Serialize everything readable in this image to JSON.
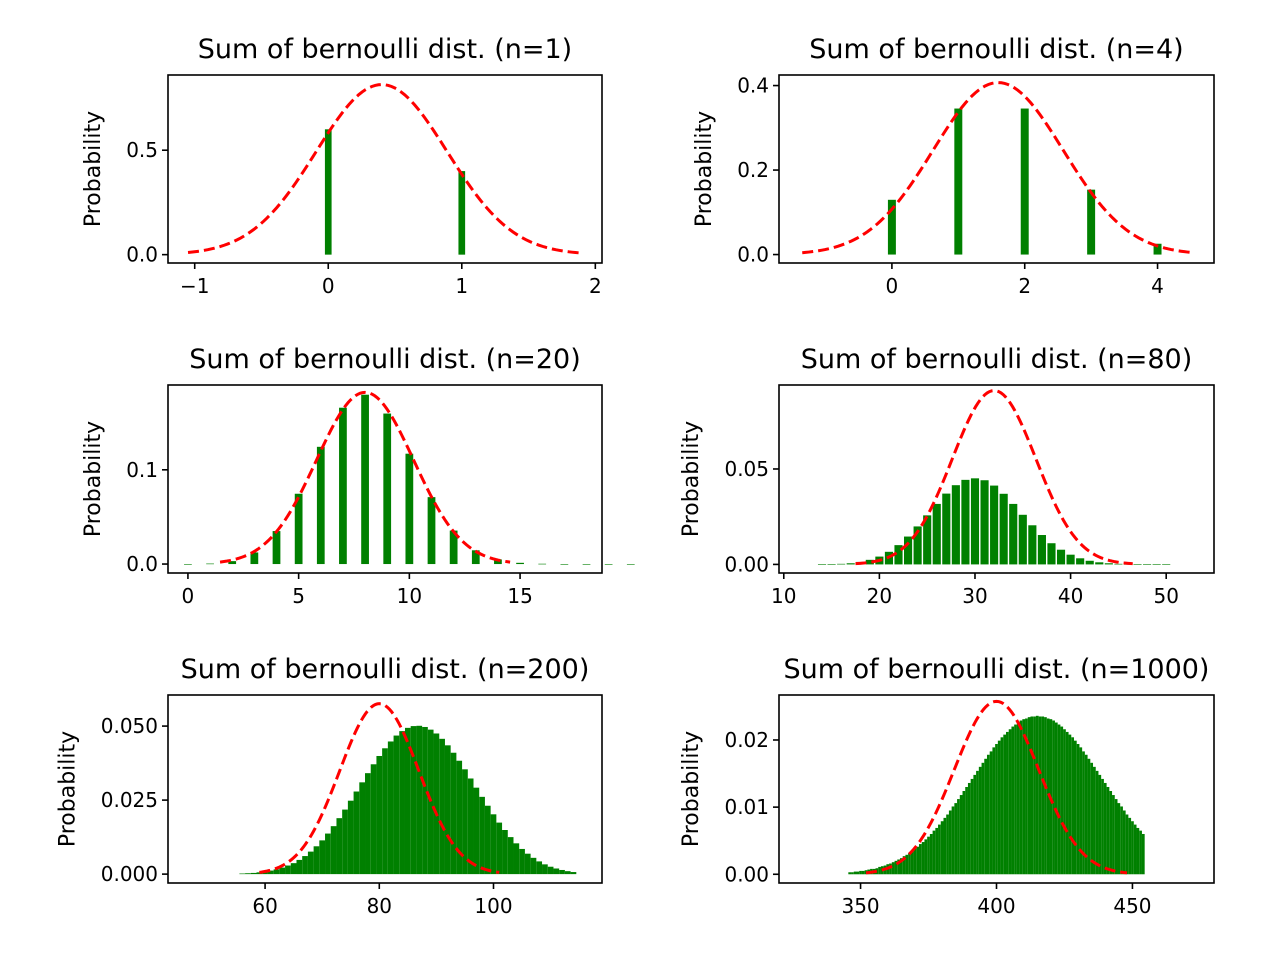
{
  "chart_data": [
    {
      "type": "bar",
      "title": "Sum of bernoulli dist. (n=1)",
      "ylabel": "Probability",
      "n": 1,
      "p": 0.4,
      "xlim": [
        -1.2,
        2.05
      ],
      "ylim": [
        -0.04,
        0.86
      ],
      "xticks": [
        -1,
        0,
        1,
        2
      ],
      "xtick_labels": [
        "−1",
        "0",
        "1",
        "2"
      ],
      "yticks": [
        0,
        0.5
      ],
      "ytick_labels": [
        "0.0",
        "0.5"
      ],
      "bar_width": 0.05,
      "x": [
        0,
        1
      ],
      "values": [
        0.6,
        0.4
      ],
      "curve": {
        "type": "normal",
        "mean": 0.4,
        "sd": 0.49,
        "x_range": [
          -1.05,
          1.9
        ]
      }
    },
    {
      "type": "bar",
      "title": "Sum of bernoulli dist. (n=4)",
      "ylabel": "Probability",
      "n": 4,
      "p": 0.4,
      "xlim": [
        -1.7,
        4.85
      ],
      "ylim": [
        -0.02,
        0.425
      ],
      "xticks": [
        0,
        2,
        4
      ],
      "xtick_labels": [
        "0",
        "2",
        "4"
      ],
      "yticks": [
        0,
        0.2,
        0.4
      ],
      "ytick_labels": [
        "0.0",
        "0.2",
        "0.4"
      ],
      "bar_width": 0.12,
      "x": [
        0,
        1,
        2,
        3,
        4
      ],
      "values": [
        0.1296,
        0.3456,
        0.3456,
        0.1536,
        0.0256
      ],
      "curve": {
        "type": "normal",
        "mean": 1.6,
        "sd": 0.98,
        "x_range": [
          -1.35,
          4.55
        ]
      }
    },
    {
      "type": "bar",
      "title": "Sum of bernoulli dist. (n=20)",
      "ylabel": "Probability",
      "n": 20,
      "p": 0.4,
      "xlim": [
        -0.9,
        18.7
      ],
      "ylim": [
        -0.0095,
        0.19
      ],
      "xticks": [
        0,
        5,
        10,
        15
      ],
      "xtick_labels": [
        "0",
        "5",
        "10",
        "15"
      ],
      "yticks": [
        0,
        0.1
      ],
      "ytick_labels": [
        "0.0",
        "0.1"
      ],
      "bar_width": 0.35,
      "x": [
        0,
        1,
        2,
        3,
        4,
        5,
        6,
        7,
        8,
        9,
        10,
        11,
        12,
        13,
        14,
        15,
        16,
        17,
        18,
        19,
        20
      ],
      "values": [
        4e-05,
        0.0005,
        0.0031,
        0.0123,
        0.035,
        0.0746,
        0.1244,
        0.1659,
        0.1797,
        0.1597,
        0.1171,
        0.071,
        0.0355,
        0.0146,
        0.0049,
        0.0013,
        0.0003,
        4e-05,
        0,
        0,
        0
      ],
      "curve": {
        "type": "normal",
        "mean": 8,
        "sd": 2.19,
        "x_range": [
          1.45,
          14.55
        ]
      }
    },
    {
      "type": "bar",
      "title": "Sum of bernoulli dist. (n=80)",
      "ylabel": "Probability",
      "n": 80,
      "p": 0.4,
      "xlim": [
        9.5,
        55
      ],
      "ylim": [
        -0.0045,
        0.094
      ],
      "xticks": [
        10,
        20,
        30,
        40,
        50
      ],
      "xtick_labels": [
        "10",
        "20",
        "30",
        "40",
        "50"
      ],
      "yticks": [
        0,
        0.05
      ],
      "ytick_labels": [
        "0.00",
        "0.05"
      ],
      "bar_width": 0.85,
      "x": [
        14,
        15,
        16,
        17,
        18,
        19,
        20,
        21,
        22,
        23,
        24,
        25,
        26,
        27,
        28,
        29,
        30,
        31,
        32,
        33,
        34,
        35,
        36,
        37,
        38,
        39,
        40,
        41,
        42,
        43,
        44,
        45,
        46,
        47,
        48,
        49,
        50
      ],
      "values": [
        5e-05,
        0.0001,
        0.0003,
        0.0006,
        0.0013,
        0.0024,
        0.0041,
        0.0066,
        0.0101,
        0.0146,
        0.0199,
        0.0257,
        0.0317,
        0.0371,
        0.0415,
        0.0443,
        0.0451,
        0.0441,
        0.0413,
        0.037,
        0.0317,
        0.026,
        0.0205,
        0.0154,
        0.0111,
        0.0077,
        0.0051,
        0.0032,
        0.0019,
        0.0011,
        0.0006,
        0.0003,
        0.0002,
        0.0001,
        4e-05,
        2e-05,
        1e-05
      ],
      "curve": {
        "type": "normal",
        "mean": 32,
        "sd": 4.38,
        "x_range": [
          17.5,
          46.5
        ]
      }
    },
    {
      "type": "bar",
      "title": "Sum of bernoulli dist. (n=200)",
      "ylabel": "Probability",
      "n": 200,
      "p": 0.4,
      "xlim": [
        43,
        119
      ],
      "ylim": [
        -0.003,
        0.0605
      ],
      "xticks": [
        60,
        80,
        100
      ],
      "xtick_labels": [
        "60",
        "80",
        "100"
      ],
      "yticks": [
        0,
        0.025,
        0.05
      ],
      "ytick_labels": [
        "0.000",
        "0.025",
        "0.050"
      ],
      "bar_width": 1,
      "x_start": 56,
      "values": [
        0.0002,
        0.0003,
        0.0004,
        0.0006,
        0.0008,
        0.0012,
        0.0016,
        0.0022,
        0.0029,
        0.0037,
        0.0048,
        0.0061,
        0.0076,
        0.0094,
        0.0114,
        0.0137,
        0.0162,
        0.0189,
        0.0218,
        0.0248,
        0.0279,
        0.031,
        0.0341,
        0.0371,
        0.0399,
        0.0425,
        0.0448,
        0.0468,
        0.0483,
        0.0494,
        0.05,
        0.0501,
        0.0497,
        0.0488,
        0.0475,
        0.0457,
        0.0435,
        0.041,
        0.0383,
        0.0354,
        0.0323,
        0.0292,
        0.0261,
        0.0231,
        0.0202,
        0.0174,
        0.0149,
        0.0125,
        0.0104,
        0.0085,
        0.0069,
        0.0055,
        0.0043,
        0.0033,
        0.0025,
        0.0019,
        0.0014,
        0.001,
        0.0007
      ],
      "curve": {
        "type": "normal",
        "mean": 80,
        "sd": 6.93,
        "x_range": [
          59,
          101
        ]
      }
    },
    {
      "type": "bar",
      "title": "Sum of bernoulli dist. (n=1000)",
      "ylabel": "Probability",
      "n": 1000,
      "p": 0.4,
      "xlim": [
        320,
        480
      ],
      "ylim": [
        -0.0013,
        0.0267
      ],
      "xticks": [
        350,
        400,
        450
      ],
      "xtick_labels": [
        "350",
        "400",
        "450"
      ],
      "yticks": [
        0,
        0.01,
        0.02
      ],
      "ytick_labels": [
        "0.00",
        "0.01",
        "0.02"
      ],
      "bar_width": 1,
      "x_start": 346,
      "values": [
        0.0003,
        0.0003,
        0.0004,
        0.0004,
        0.0005,
        0.0005,
        0.0006,
        0.0007,
        0.0008,
        0.0008,
        0.0009,
        0.0011,
        0.0012,
        0.0013,
        0.0015,
        0.0016,
        0.0018,
        0.002,
        0.0022,
        0.0024,
        0.0027,
        0.0029,
        0.0032,
        0.0035,
        0.0038,
        0.0041,
        0.0045,
        0.0048,
        0.0052,
        0.0056,
        0.006,
        0.0065,
        0.0069,
        0.0074,
        0.0079,
        0.0084,
        0.0089,
        0.0095,
        0.0101,
        0.0106,
        0.0112,
        0.0118,
        0.0124,
        0.013,
        0.0136,
        0.0142,
        0.0148,
        0.0154,
        0.016,
        0.0166,
        0.0172,
        0.0178,
        0.0183,
        0.0189,
        0.0194,
        0.0199,
        0.0204,
        0.0208,
        0.0212,
        0.0216,
        0.022,
        0.0223,
        0.0226,
        0.0229,
        0.0231,
        0.0232,
        0.0234,
        0.0235,
        0.0235,
        0.0236,
        0.0235,
        0.0235,
        0.0234,
        0.0232,
        0.0231,
        0.0229,
        0.0226,
        0.0223,
        0.022,
        0.0216,
        0.0212,
        0.0208,
        0.0204,
        0.0199,
        0.0194,
        0.0189,
        0.0183,
        0.0178,
        0.0172,
        0.0166,
        0.016,
        0.0154,
        0.0148,
        0.0142,
        0.0136,
        0.013,
        0.0124,
        0.0118,
        0.0112,
        0.0106,
        0.0101,
        0.0095,
        0.0089,
        0.0084,
        0.0079,
        0.0074,
        0.0069,
        0.0065,
        0.006
      ],
      "curve": {
        "type": "normal",
        "mean": 400,
        "sd": 15.49,
        "x_range": [
          352,
          448
        ]
      }
    }
  ],
  "colors": {
    "bars": "#008000",
    "curve": "#ff0000",
    "axes": "#000000"
  }
}
